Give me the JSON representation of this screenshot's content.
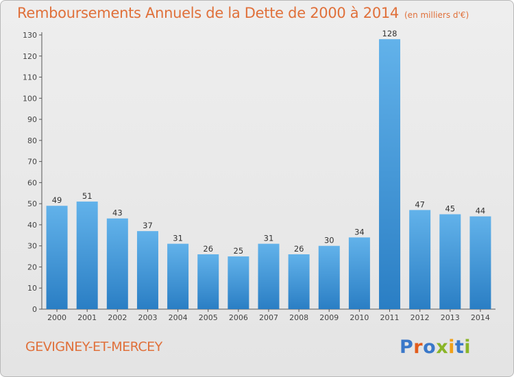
{
  "header": {
    "title": "Remboursements Annuels de la Dette de 2000 à 2014",
    "subtitle": "(en milliers d'€)"
  },
  "footer": {
    "commune": "GEVIGNEY-ET-MERCEY",
    "logo_text": "Proxiti"
  },
  "colors": {
    "title": "#e0703a",
    "bar_light": "#5eaee8",
    "bar_dark": "#2a7ec4"
  },
  "chart_data": {
    "type": "bar",
    "title": "Remboursements Annuels de la Dette de 2000 à 2014",
    "subtitle": "(en milliers d'€)",
    "categories": [
      "2000",
      "2001",
      "2002",
      "2003",
      "2004",
      "2005",
      "2006",
      "2007",
      "2008",
      "2009",
      "2010",
      "2011",
      "2012",
      "2013",
      "2014"
    ],
    "values": [
      49,
      51,
      43,
      37,
      31,
      26,
      25,
      31,
      26,
      30,
      34,
      128,
      47,
      45,
      44
    ],
    "xlabel": "",
    "ylabel": "",
    "ylim": [
      0,
      130
    ],
    "yticks": [
      0,
      10,
      20,
      30,
      40,
      50,
      60,
      70,
      80,
      90,
      100,
      110,
      120,
      130
    ],
    "grid": false,
    "legend": "none"
  }
}
